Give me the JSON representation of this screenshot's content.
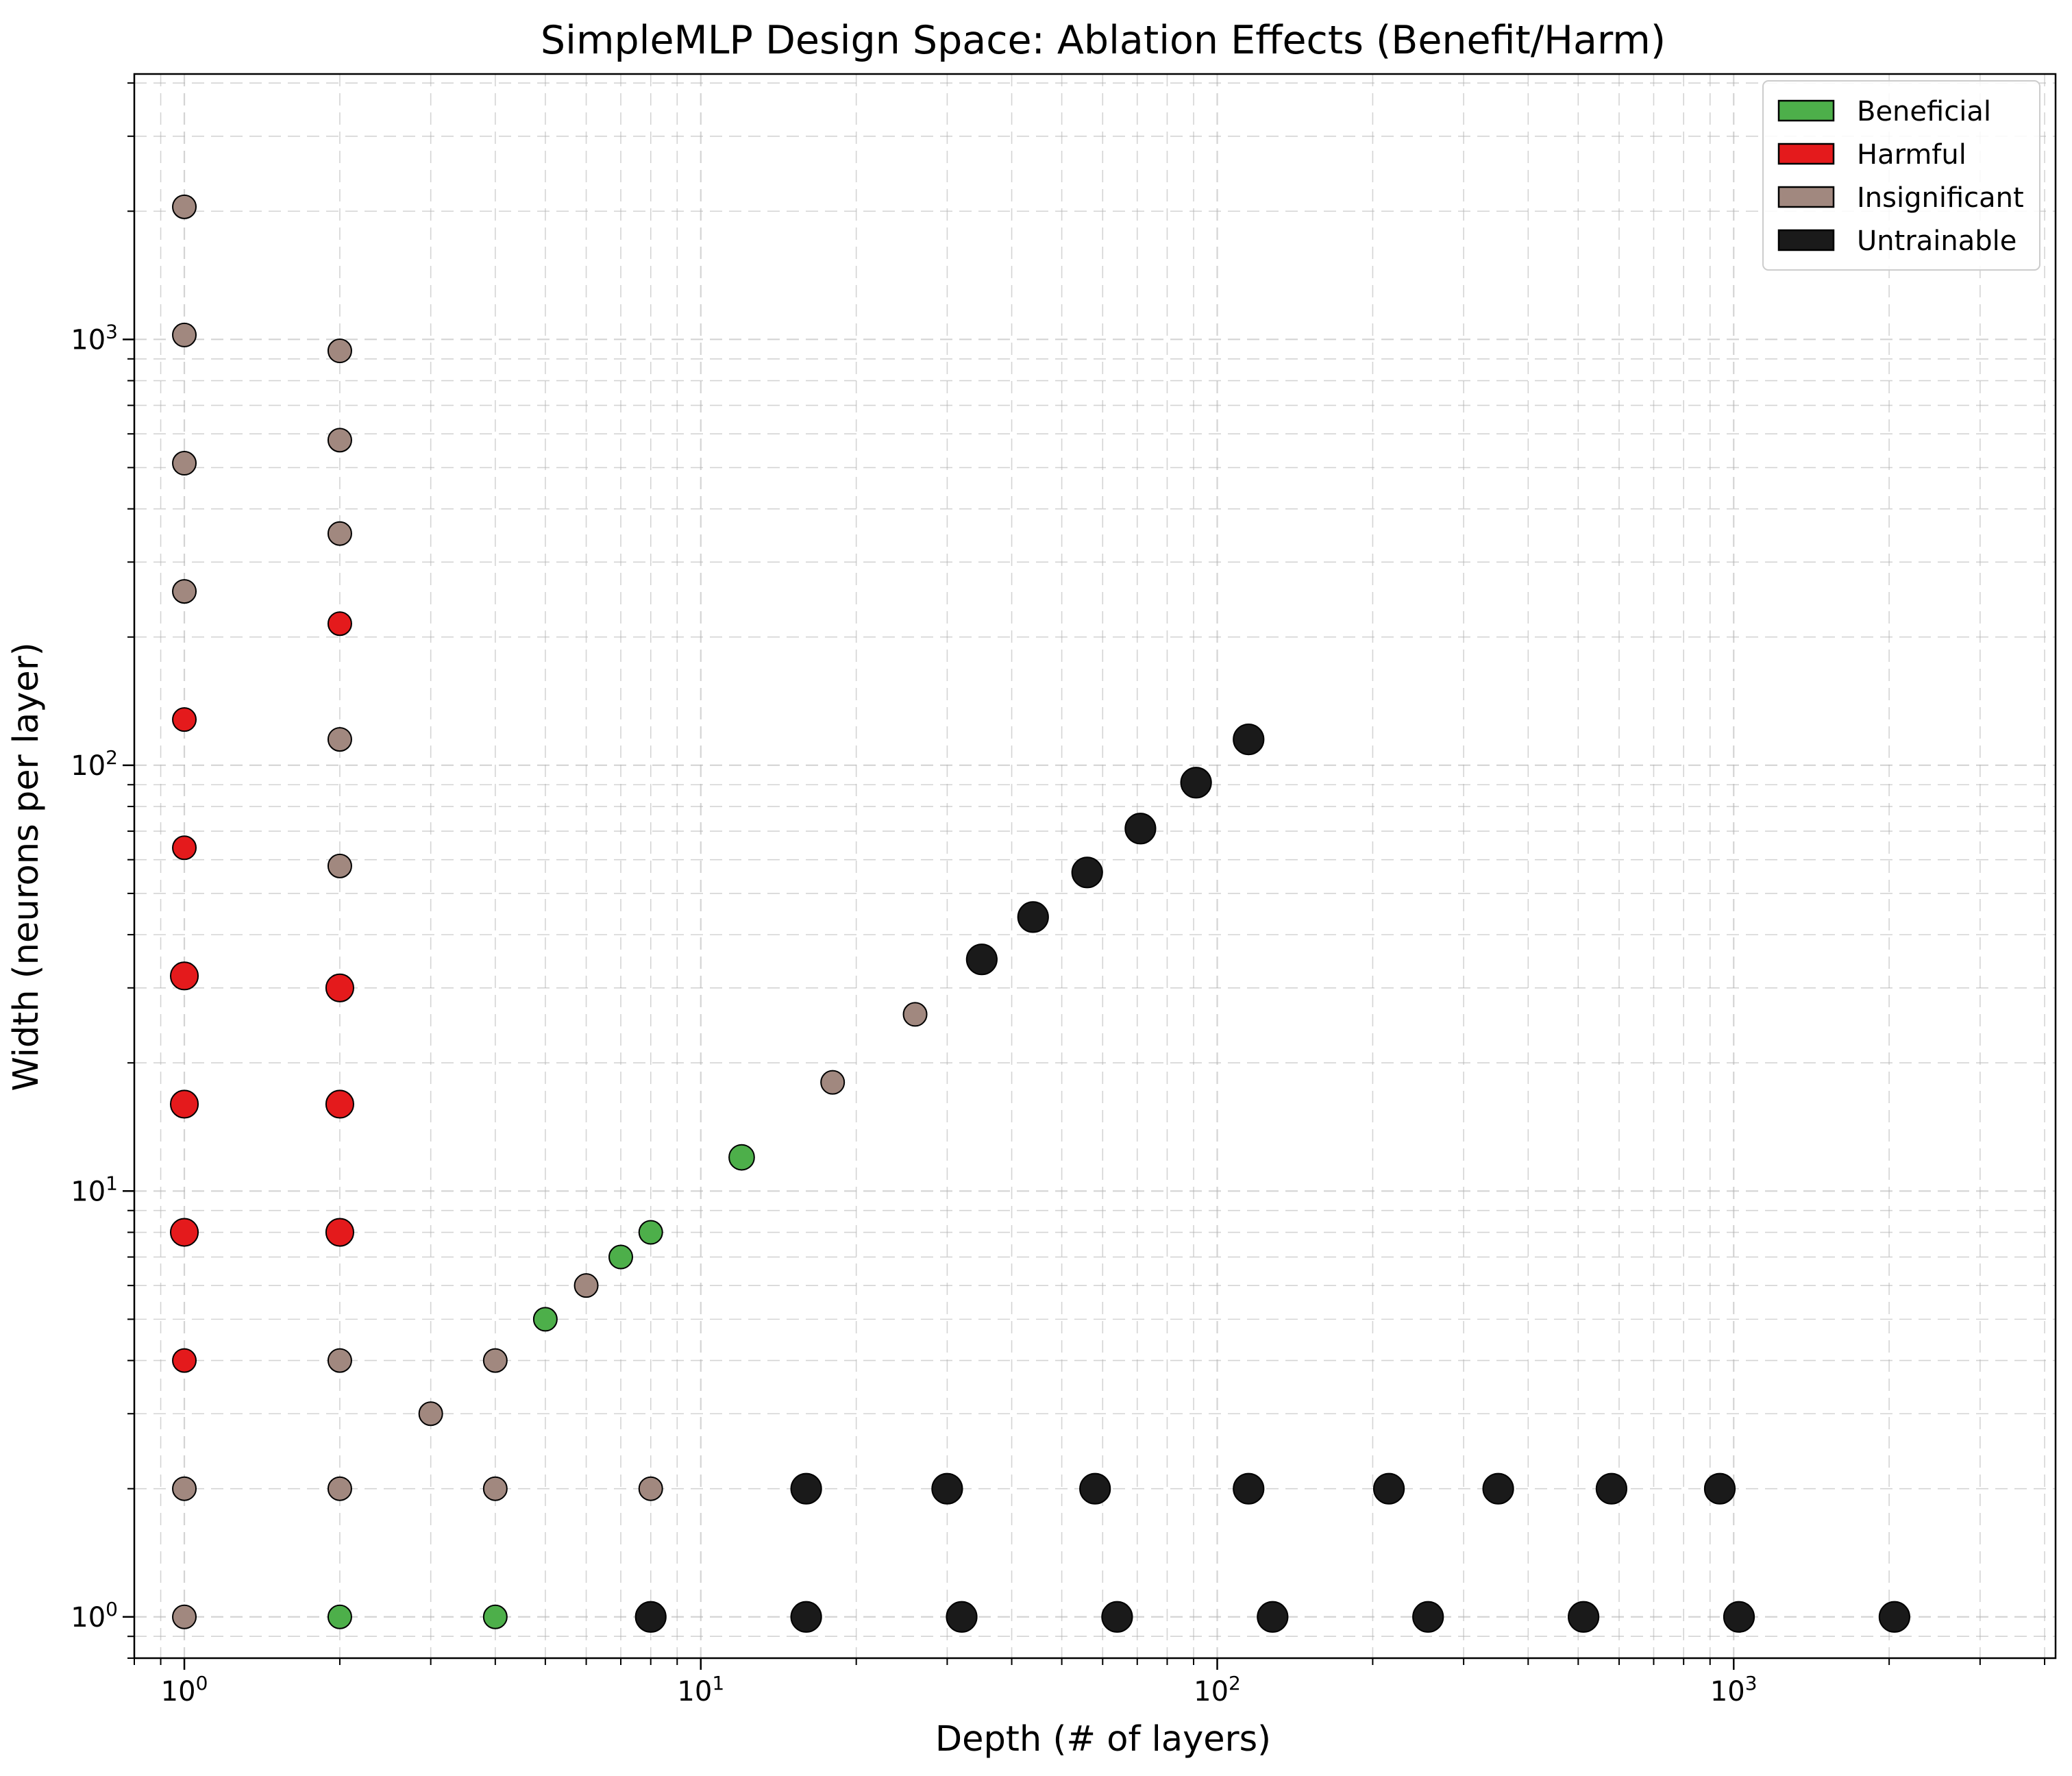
{
  "chart_data": {
    "type": "scatter",
    "title": "SimpleMLP Design Space: Ablation Effects (Benefit/Harm)",
    "xlabel": "Depth (# of layers)",
    "ylabel": "Width (neurons per layer)",
    "xscale": "log",
    "yscale": "log",
    "xlim": [
      0.8,
      4200
    ],
    "ylim": [
      0.8,
      4200
    ],
    "xticks": [
      {
        "value": 1,
        "base": "10",
        "exp": "0"
      },
      {
        "value": 10,
        "base": "10",
        "exp": "1"
      },
      {
        "value": 100,
        "base": "10",
        "exp": "2"
      },
      {
        "value": 1000,
        "base": "10",
        "exp": "3"
      }
    ],
    "yticks": [
      {
        "value": 1,
        "base": "10",
        "exp": "0"
      },
      {
        "value": 10,
        "base": "10",
        "exp": "1"
      },
      {
        "value": 100,
        "base": "10",
        "exp": "2"
      },
      {
        "value": 1000,
        "base": "10",
        "exp": "3"
      }
    ],
    "grid": true,
    "legend_position": "top-right",
    "series": [
      {
        "name": "Beneficial",
        "color": "#4daf4a",
        "points": [
          {
            "x": 2,
            "y": 1,
            "size": 1
          },
          {
            "x": 4,
            "y": 1,
            "size": 1
          },
          {
            "x": 5,
            "y": 5,
            "size": 1
          },
          {
            "x": 7,
            "y": 7,
            "size": 1
          },
          {
            "x": 8,
            "y": 8,
            "size": 1
          },
          {
            "x": 12,
            "y": 12,
            "size": 1.08
          }
        ]
      },
      {
        "name": "Harmful",
        "color": "#e41a1c",
        "points": [
          {
            "x": 1,
            "y": 4,
            "size": 1
          },
          {
            "x": 1,
            "y": 8,
            "size": 1.18
          },
          {
            "x": 1,
            "y": 16,
            "size": 1.18
          },
          {
            "x": 1,
            "y": 32,
            "size": 1.18
          },
          {
            "x": 1,
            "y": 64,
            "size": 1
          },
          {
            "x": 1,
            "y": 128,
            "size": 1
          },
          {
            "x": 2,
            "y": 8,
            "size": 1.18
          },
          {
            "x": 2,
            "y": 16,
            "size": 1.18
          },
          {
            "x": 2,
            "y": 30,
            "size": 1.18
          },
          {
            "x": 2,
            "y": 215,
            "size": 1
          }
        ]
      },
      {
        "name": "Insignificant",
        "color": "#a1887f",
        "points": [
          {
            "x": 1,
            "y": 1,
            "size": 1
          },
          {
            "x": 1,
            "y": 2,
            "size": 1
          },
          {
            "x": 1,
            "y": 256,
            "size": 1
          },
          {
            "x": 1,
            "y": 512,
            "size": 1
          },
          {
            "x": 1,
            "y": 1024,
            "size": 1
          },
          {
            "x": 1,
            "y": 2048,
            "size": 1
          },
          {
            "x": 2,
            "y": 2,
            "size": 1
          },
          {
            "x": 2,
            "y": 4,
            "size": 1
          },
          {
            "x": 2,
            "y": 58,
            "size": 1
          },
          {
            "x": 2,
            "y": 115,
            "size": 1
          },
          {
            "x": 2,
            "y": 350,
            "size": 1
          },
          {
            "x": 2,
            "y": 580,
            "size": 1
          },
          {
            "x": 2,
            "y": 940,
            "size": 1
          },
          {
            "x": 3,
            "y": 3,
            "size": 1
          },
          {
            "x": 4,
            "y": 2,
            "size": 1
          },
          {
            "x": 4,
            "y": 4,
            "size": 1
          },
          {
            "x": 6,
            "y": 6,
            "size": 1
          },
          {
            "x": 8,
            "y": 2,
            "size": 1
          },
          {
            "x": 18,
            "y": 18,
            "size": 1
          },
          {
            "x": 26,
            "y": 26,
            "size": 1
          }
        ]
      },
      {
        "name": "Untrainable",
        "color": "#1a1a1a",
        "points": [
          {
            "x": 8,
            "y": 1,
            "size": 1.3
          },
          {
            "x": 16,
            "y": 1,
            "size": 1.3
          },
          {
            "x": 32,
            "y": 1,
            "size": 1.3
          },
          {
            "x": 64,
            "y": 1,
            "size": 1.3
          },
          {
            "x": 128,
            "y": 1,
            "size": 1.3
          },
          {
            "x": 256,
            "y": 1,
            "size": 1.3
          },
          {
            "x": 512,
            "y": 1,
            "size": 1.3
          },
          {
            "x": 1024,
            "y": 1,
            "size": 1.3
          },
          {
            "x": 2048,
            "y": 1,
            "size": 1.3
          },
          {
            "x": 16,
            "y": 2,
            "size": 1.3
          },
          {
            "x": 30,
            "y": 2,
            "size": 1.3
          },
          {
            "x": 58,
            "y": 2,
            "size": 1.3
          },
          {
            "x": 115,
            "y": 2,
            "size": 1.3
          },
          {
            "x": 215,
            "y": 2,
            "size": 1.3
          },
          {
            "x": 350,
            "y": 2,
            "size": 1.3
          },
          {
            "x": 580,
            "y": 2,
            "size": 1.3
          },
          {
            "x": 940,
            "y": 2,
            "size": 1.3
          },
          {
            "x": 35,
            "y": 35,
            "size": 1.3
          },
          {
            "x": 44,
            "y": 44,
            "size": 1.3
          },
          {
            "x": 56,
            "y": 56,
            "size": 1.3
          },
          {
            "x": 71,
            "y": 71,
            "size": 1.3
          },
          {
            "x": 91,
            "y": 91,
            "size": 1.3
          },
          {
            "x": 115,
            "y": 115,
            "size": 1.3
          }
        ]
      }
    ]
  }
}
